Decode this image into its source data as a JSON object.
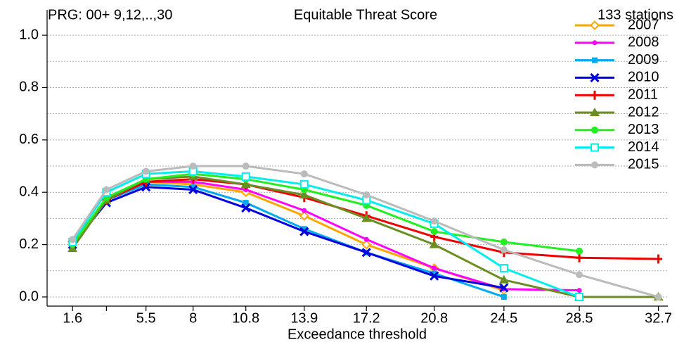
{
  "chart_data": {
    "type": "line",
    "title": "Equitable Threat Score",
    "left_title": "PRG: 00+ 9,12,..,30",
    "right_title": "133 stations",
    "x_label": "Exceedance threshold",
    "x": [
      1.6,
      3.4,
      5.5,
      8,
      10.8,
      13.9,
      17.2,
      20.8,
      24.5,
      28.5,
      32.7
    ],
    "xlim": [
      0.25,
      33.2
    ],
    "xticks": [
      1.6,
      {
        "value": 3.4,
        "label": null
      },
      5.5,
      8,
      10.8,
      13.9,
      17.2,
      20.8,
      24.5,
      28.5,
      32.7
    ],
    "ylim": [
      -0.035,
      1.097
    ],
    "yticks": [
      {
        "value": 0,
        "label": "0.0"
      },
      0.2,
      0.4,
      0.6,
      0.8,
      {
        "value": 1,
        "label": "1.0"
      }
    ],
    "y_minor_grid": [
      0.1,
      0.3,
      0.5,
      0.7,
      0.9
    ],
    "grid": true,
    "legend": "top-right",
    "series": [
      {
        "name": "2007",
        "color": "#ffa500",
        "marker": "diamond",
        "values": [
          0.21,
          0.37,
          0.44,
          0.43,
          0.4,
          0.31,
          0.2,
          0.11,
          0.025,
          null,
          null
        ]
      },
      {
        "name": "2008",
        "color": "#ff00ff",
        "marker": "dot",
        "values": [
          0.21,
          0.37,
          0.44,
          0.44,
          0.41,
          0.33,
          0.22,
          0.11,
          0.03,
          0.025,
          null
        ]
      },
      {
        "name": "2009",
        "color": "#00aaee",
        "marker": "square",
        "values": [
          0.2,
          0.37,
          0.43,
          0.42,
          0.36,
          0.26,
          0.17,
          0.09,
          0.0,
          null,
          null
        ]
      },
      {
        "name": "2010",
        "color": "#0000dd",
        "marker": "cross",
        "values": [
          0.2,
          0.36,
          0.42,
          0.41,
          0.34,
          0.25,
          0.17,
          0.08,
          0.035,
          null,
          null
        ]
      },
      {
        "name": "2011",
        "color": "#ee0000",
        "marker": "plus",
        "values": [
          0.2,
          0.37,
          0.44,
          0.45,
          0.43,
          0.38,
          0.31,
          0.23,
          0.17,
          0.15,
          0.145
        ]
      },
      {
        "name": "2012",
        "color": "#6b8e23",
        "marker": "triangle",
        "values": [
          0.185,
          0.37,
          0.45,
          0.46,
          0.43,
          0.39,
          0.3,
          0.2,
          0.065,
          0.0,
          0.0
        ]
      },
      {
        "name": "2013",
        "color": "#22ee22",
        "marker": "circle",
        "values": [
          0.2,
          0.38,
          0.45,
          0.47,
          0.45,
          0.41,
          0.35,
          0.25,
          0.21,
          0.175,
          null
        ]
      },
      {
        "name": "2014",
        "color": "#00eeee",
        "marker": "square-open",
        "values": [
          0.21,
          0.4,
          0.47,
          0.48,
          0.46,
          0.43,
          0.37,
          0.28,
          0.11,
          0.0,
          null
        ]
      },
      {
        "name": "2015",
        "color": "#bbbbbb",
        "marker": "circle",
        "values": [
          0.22,
          0.41,
          0.48,
          0.5,
          0.5,
          0.47,
          0.39,
          0.29,
          0.18,
          0.085,
          0.0
        ]
      }
    ]
  }
}
